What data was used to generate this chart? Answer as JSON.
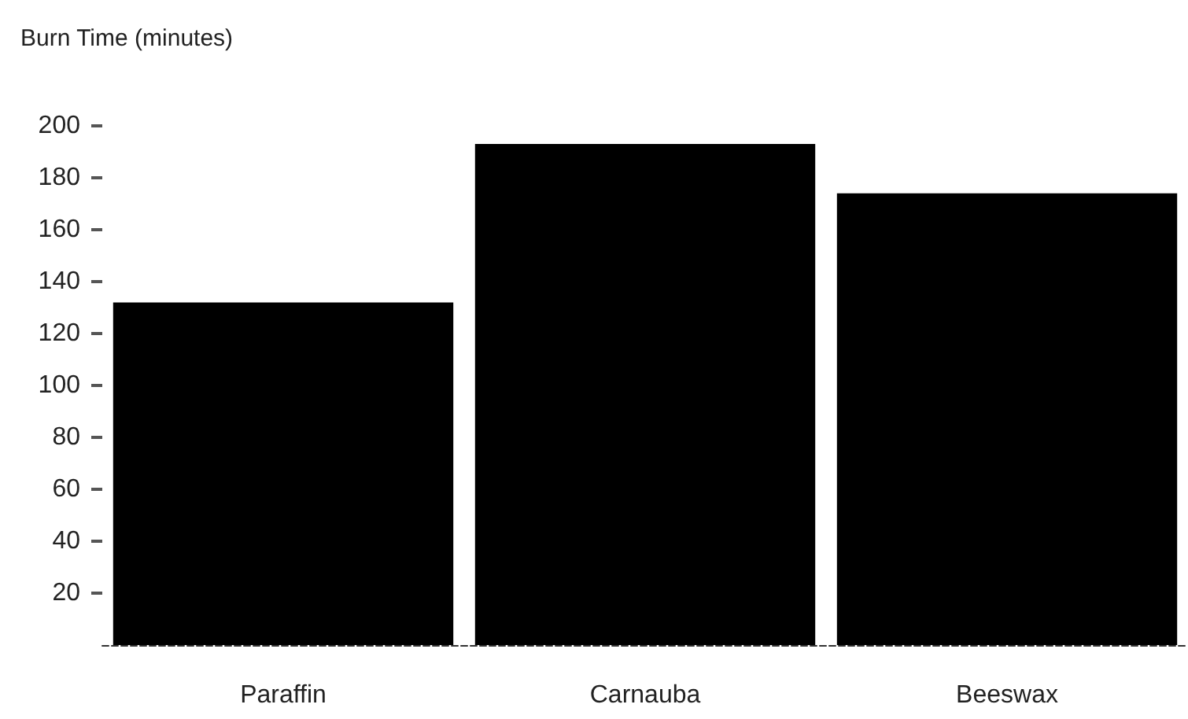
{
  "chart_data": {
    "type": "bar",
    "ylabel": "Burn Time (minutes)",
    "categories": [
      "Paraffin",
      "Carnauba",
      "Beeswax"
    ],
    "values": [
      132,
      193,
      174
    ],
    "color": "#000000",
    "ylim": [
      0,
      200
    ],
    "yticks": [
      20,
      40,
      60,
      80,
      100,
      120,
      140,
      160,
      180,
      200
    ],
    "grid": false
  }
}
